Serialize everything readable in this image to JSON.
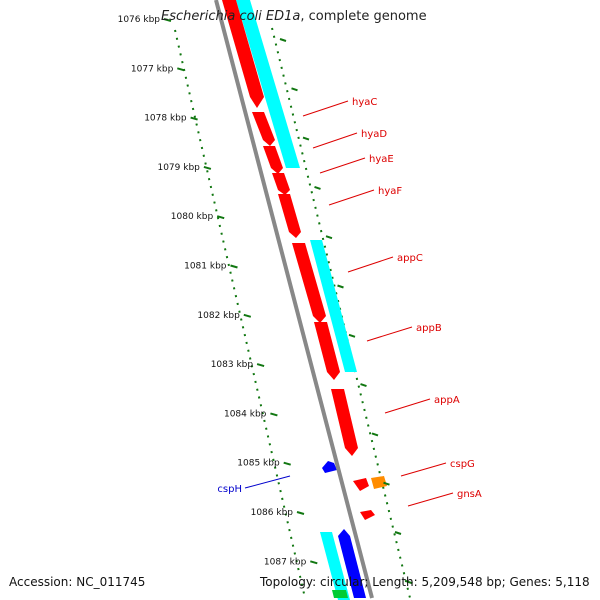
{
  "title": {
    "organism": "Escherichia coli ED1a",
    "suffix": ", complete genome"
  },
  "ticks": [
    "1076 kbp",
    "1077 kbp",
    "1078 kbp",
    "1079 kbp",
    "1080 kbp",
    "1081 kbp",
    "1082 kbp",
    "1083 kbp",
    "1084 kbp",
    "1085 kbp",
    "1086 kbp",
    "1087 kbp"
  ],
  "genes": [
    {
      "name": "hyaC",
      "color": "#dd0000"
    },
    {
      "name": "hyaD",
      "color": "#dd0000"
    },
    {
      "name": "hyaE",
      "color": "#dd0000"
    },
    {
      "name": "hyaF",
      "color": "#dd0000"
    },
    {
      "name": "appC",
      "color": "#dd0000"
    },
    {
      "name": "appB",
      "color": "#dd0000"
    },
    {
      "name": "appA",
      "color": "#dd0000"
    },
    {
      "name": "cspG",
      "color": "#dd0000"
    },
    {
      "name": "gnsA",
      "color": "#dd0000"
    },
    {
      "name": "cspH",
      "color": "#0000cc"
    }
  ],
  "colors": {
    "forward_cds": "#ff0000",
    "reverse_cds": "#0000ff",
    "orf_band": "#00ffff",
    "other_feature": "#ff8c00",
    "backbone": "#888888",
    "tick": "#117711",
    "extra_band": "#00cc33"
  },
  "footer": {
    "accession": "Accession: NC_011745",
    "topology": "Topology: circular; Length: 5,209,548 bp; Genes: 5,118"
  }
}
